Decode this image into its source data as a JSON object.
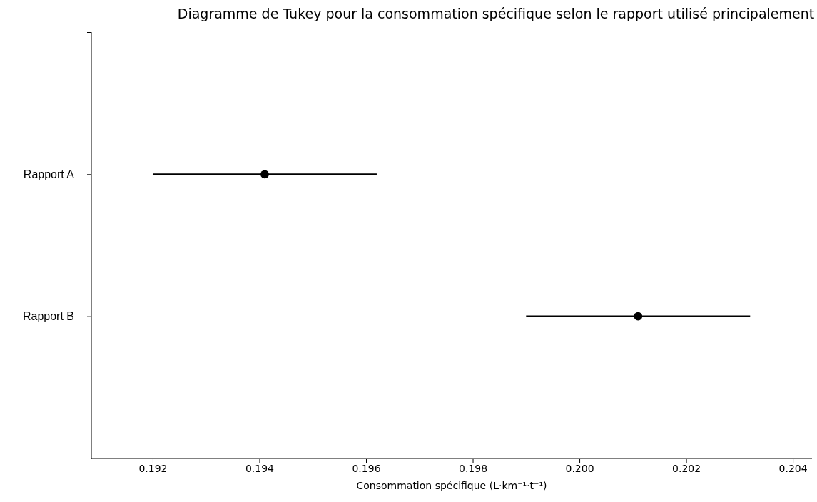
{
  "chart_data": {
    "type": "scatter",
    "orientation": "horizontal",
    "title": "Diagramme de Tukey pour la consommation spécifique selon le rapport utilisé principalement",
    "xlabel": "Consommation spécifique (L·km⁻¹·t⁻¹)",
    "categories": [
      null,
      "Rapport A",
      "Rapport B",
      null
    ],
    "values": [
      null,
      0.1941,
      0.2011,
      null
    ],
    "errors": [
      null,
      0.0021,
      0.0021,
      null
    ],
    "color": "#000000",
    "marker": "circle",
    "xlim": [
      0.19085,
      0.20436
    ],
    "xticks": [
      0.192,
      0.194,
      0.196,
      0.198,
      {
        "value": 0.2,
        "label": "0.200"
      },
      0.202,
      0.204
    ]
  }
}
